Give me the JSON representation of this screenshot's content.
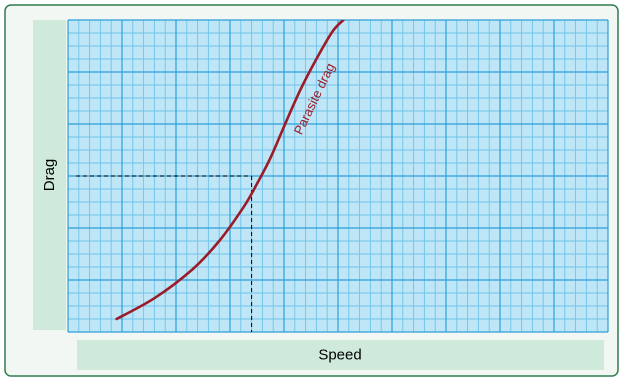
{
  "colors": {
    "frame_border": "#2e7d4f",
    "frame_fill": "#f3f7f4",
    "label_panel": "#cfe9da",
    "plot_fill": "#bfe6f7",
    "grid_major": "#2aa0d8",
    "grid_minor": "#6ec3ea",
    "curve": "#9b1c28",
    "reference_line": "#000000"
  },
  "chart_data": {
    "type": "line",
    "xlabel": "Speed",
    "ylabel": "Drag",
    "xlim": [
      0,
      10
    ],
    "ylim": [
      0,
      6
    ],
    "grid": true,
    "major_grid": {
      "x_step": 1,
      "y_step": 1
    },
    "minor_grid": {
      "x_step": 0.2,
      "y_step": 0.25
    },
    "series": [
      {
        "name": "Parasite drag",
        "x": [
          0.9,
          1.6,
          2.3,
          2.8,
          3.25,
          3.5,
          3.75,
          4.0,
          4.3,
          4.6,
          4.9,
          5.1
        ],
        "y": [
          0.25,
          0.65,
          1.2,
          1.75,
          2.4,
          2.85,
          3.35,
          3.95,
          4.65,
          5.25,
          5.78,
          6.0
        ]
      }
    ],
    "reference_point": {
      "x": 3.4,
      "y": 3.0,
      "style": "dashed"
    }
  }
}
